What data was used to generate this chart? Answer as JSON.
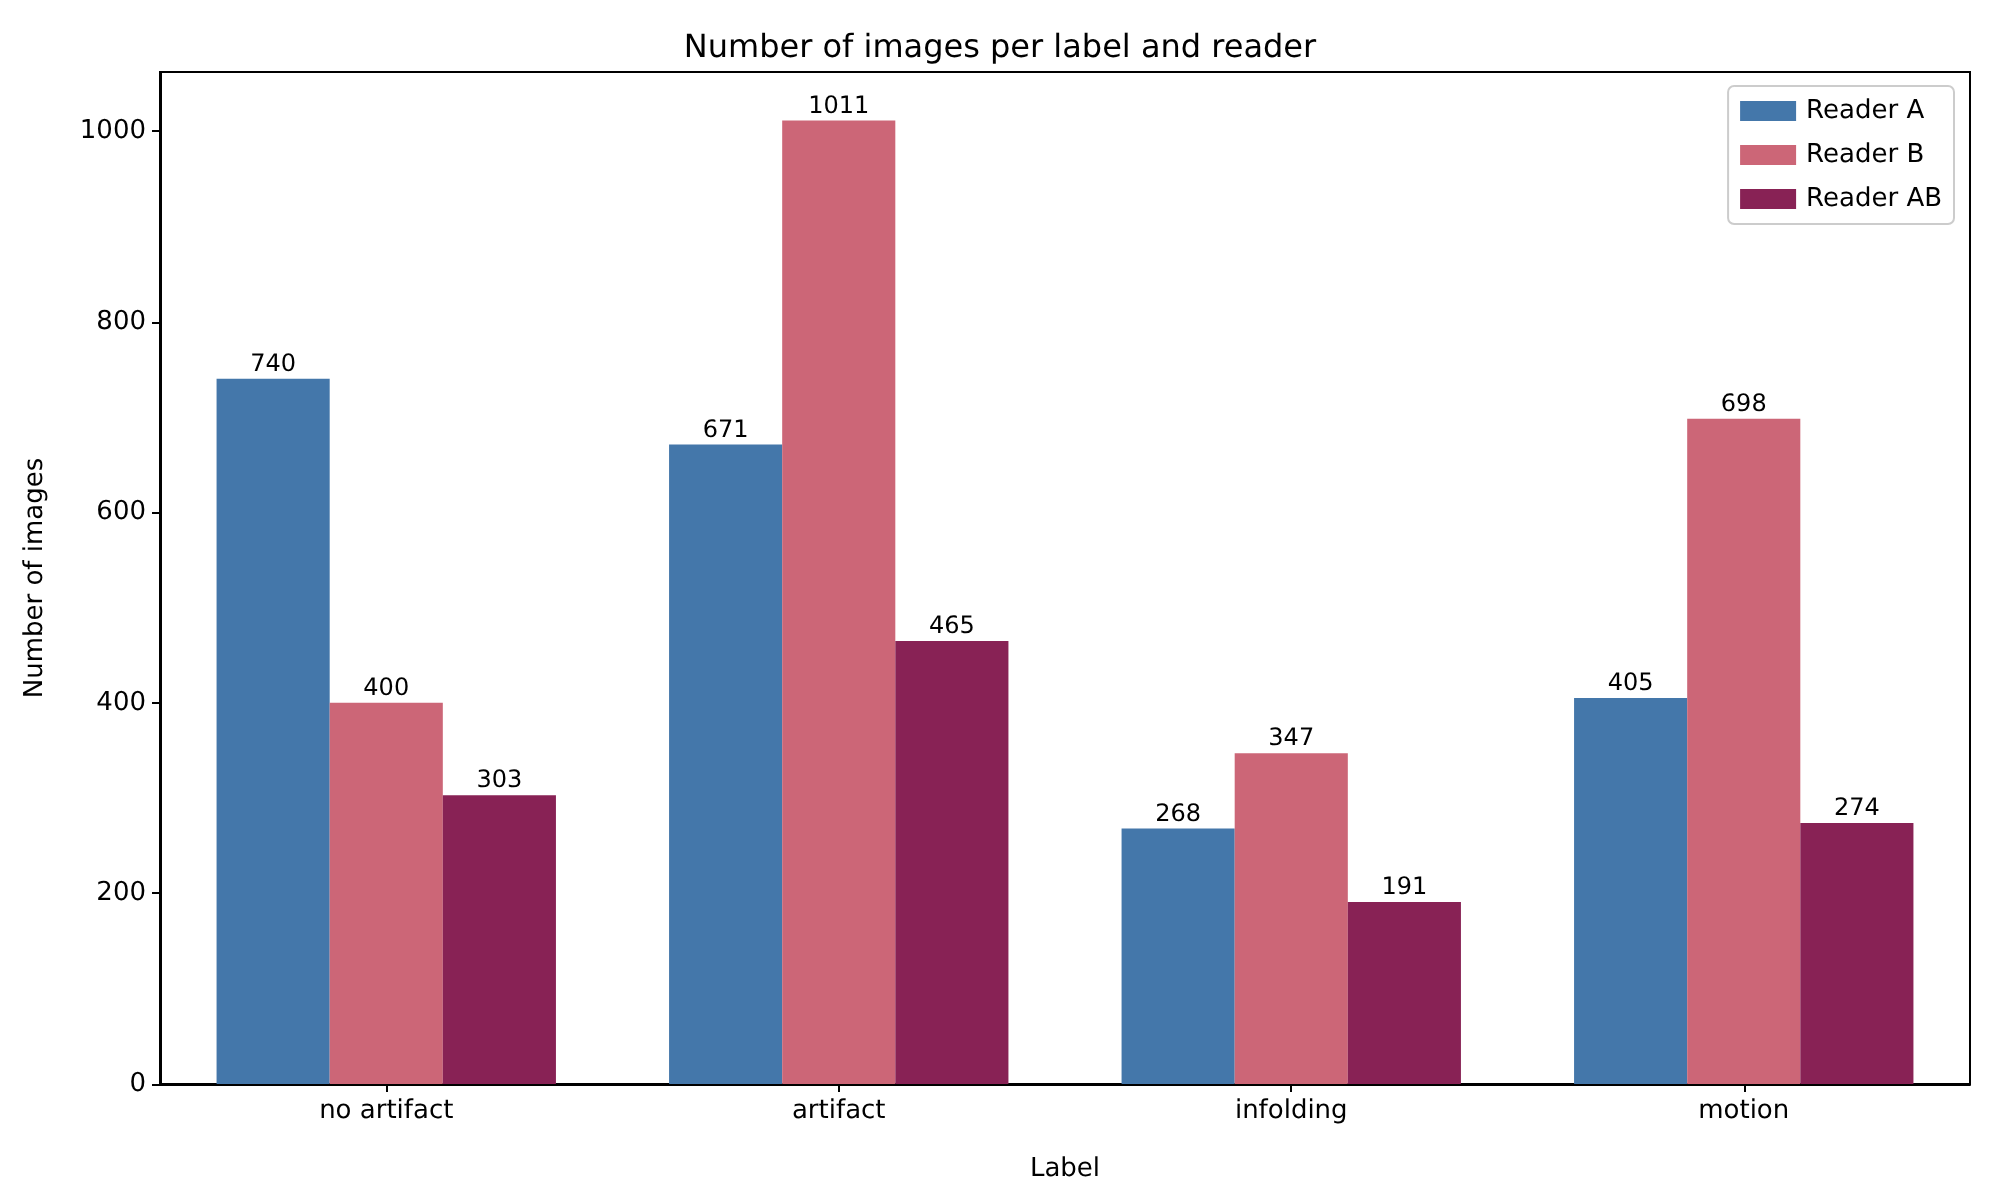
{
  "chart_data": {
    "type": "bar",
    "title": "Number of images per label and reader",
    "xlabel": "Label",
    "ylabel": "Number of images",
    "categories": [
      "no artifact",
      "artifact",
      "infolding",
      "motion"
    ],
    "series": [
      {
        "name": "Reader A",
        "color": "#4477aa",
        "values": [
          740,
          671,
          268,
          405
        ]
      },
      {
        "name": "Reader B",
        "color": "#cc6677",
        "values": [
          400,
          1011,
          347,
          698
        ]
      },
      {
        "name": "Reader AB",
        "color": "#882255",
        "values": [
          303,
          465,
          191,
          274
        ]
      }
    ],
    "ylim": [
      0,
      1062
    ],
    "yticks": [
      0,
      200,
      400,
      600,
      800,
      1000
    ],
    "data_labels": true,
    "grid": false,
    "legend": "top right"
  }
}
